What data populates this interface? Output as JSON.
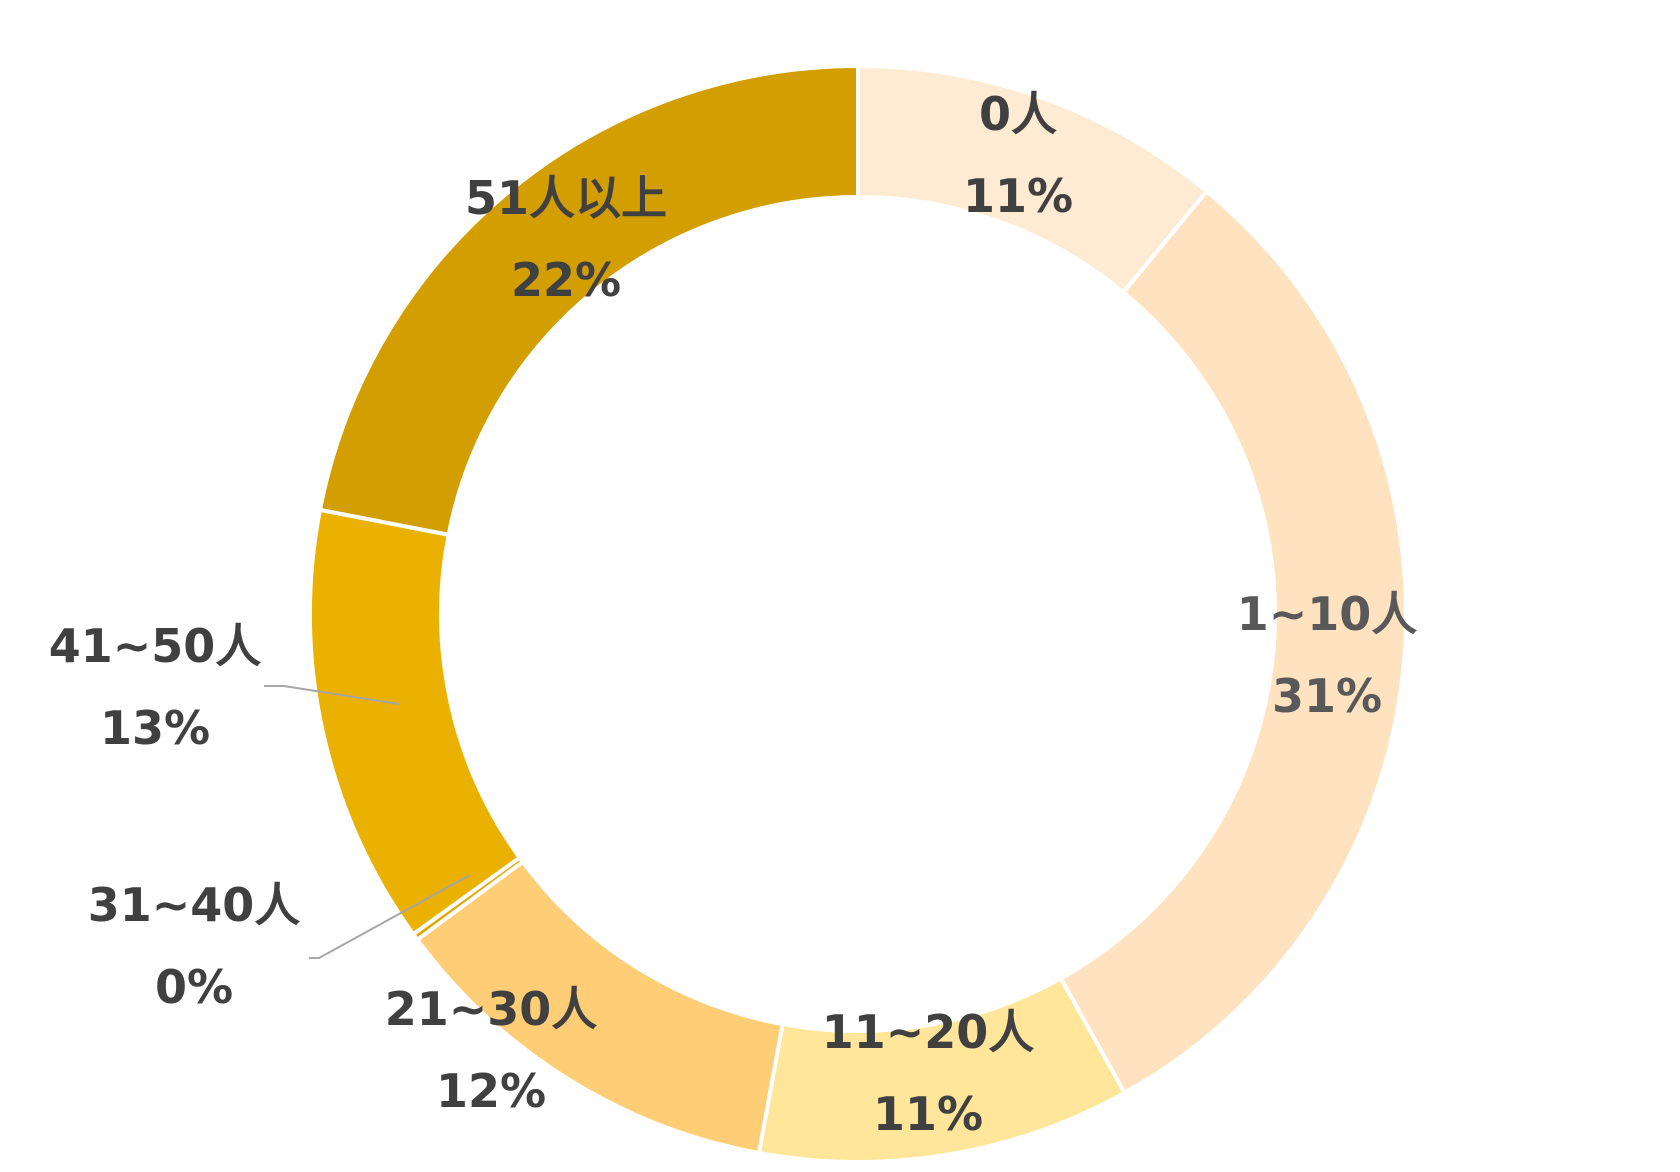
{
  "chart_data": {
    "type": "pie",
    "donut": true,
    "title": "",
    "start_angle_deg": 0,
    "direction": "clockwise",
    "slices": [
      {
        "label": "0人",
        "percent_label": "11%",
        "value": 11,
        "color": "#FFEBD3",
        "text_color": "#404040"
      },
      {
        "label": "1~10人",
        "percent_label": "31%",
        "value": 31,
        "color": "#FFE3C1",
        "text_color": "#595959"
      },
      {
        "label": "11~20人",
        "percent_label": "11%",
        "value": 11,
        "color": "#FFE69A",
        "text_color": "#404040"
      },
      {
        "label": "21~30人",
        "percent_label": "12%",
        "value": 12,
        "color": "#FECD76",
        "text_color": "#404040"
      },
      {
        "label": "31~40人",
        "percent_label": "0%",
        "value": 0.2,
        "color": "#E3A800",
        "text_color": "#404040"
      },
      {
        "label": "41~50人",
        "percent_label": "13%",
        "value": 13,
        "color": "#EAB100",
        "text_color": "#404040"
      },
      {
        "label": "51人以上",
        "percent_label": "22%",
        "value": 22,
        "color": "#D29E00",
        "text_color": "#404040"
      }
    ],
    "legend": "none",
    "leader_lines_for": [
      "31~40人",
      "41~50人"
    ]
  }
}
